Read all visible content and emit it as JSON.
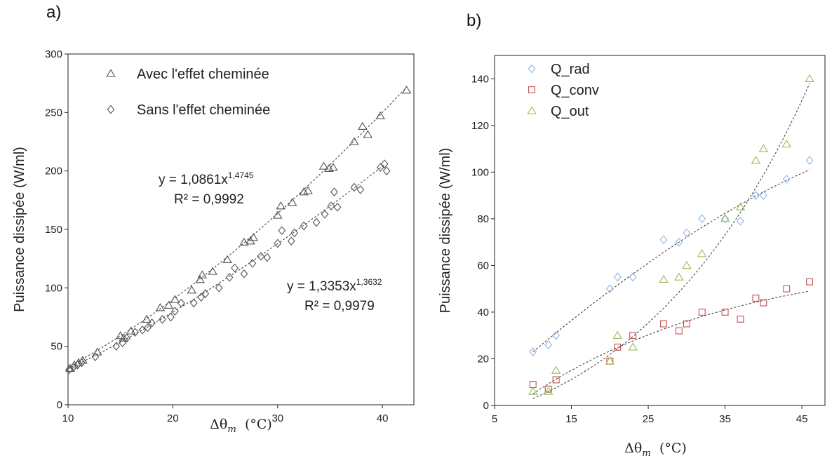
{
  "panel_a": {
    "label": "a)"
  },
  "panel_b": {
    "label": "b)"
  },
  "chart_data": [
    {
      "type": "scatter",
      "panel": "a)",
      "xlabel": "Δθm (°C)",
      "ylabel": "Puissance dissipée (W/ml)",
      "xlim": [
        10,
        43
      ],
      "ylim": [
        0,
        300
      ],
      "xticks": [
        10,
        20,
        30,
        40
      ],
      "yticks": [
        0,
        50,
        100,
        150,
        200,
        250,
        300
      ],
      "grid": false,
      "legend_position": "top-left",
      "series": [
        {
          "name": "Avec l'effet cheminée",
          "marker": "triangle",
          "color": "#555555",
          "x": [
            10.2,
            10.6,
            11.0,
            11.4,
            12.8,
            15.0,
            15.3,
            16.0,
            17.5,
            18.8,
            19.6,
            20.2,
            21.8,
            22.6,
            22.8,
            23.8,
            25.2,
            26.8,
            27.4,
            27.7,
            30.0,
            30.3,
            31.4,
            32.5,
            32.9,
            34.4,
            34.9,
            35.3,
            37.3,
            38.1,
            38.6,
            39.8,
            42.3
          ],
          "y": [
            31,
            34,
            36,
            38,
            45,
            59,
            57,
            63,
            73,
            83,
            85,
            90,
            98,
            107,
            111,
            114,
            124,
            139,
            140,
            143,
            162,
            170,
            173,
            182,
            183,
            204,
            202,
            203,
            225,
            238,
            231,
            247,
            269
          ]
        },
        {
          "name": "Sans l'effet cheminée",
          "marker": "diamond",
          "color": "#555555",
          "x": [
            10.1,
            10.5,
            10.9,
            11.3,
            12.6,
            14.6,
            15.2,
            15.6,
            16.4,
            17.1,
            17.6,
            18.0,
            19.0,
            19.8,
            20.2,
            20.8,
            22.0,
            22.7,
            23.1,
            24.4,
            25.4,
            25.9,
            26.8,
            27.6,
            28.4,
            29.0,
            30.0,
            30.4,
            31.3,
            31.6,
            32.5,
            33.7,
            34.5,
            35.1,
            35.4,
            35.7,
            37.3,
            37.9,
            39.8,
            40.2,
            40.4
          ],
          "y": [
            30,
            32,
            34,
            36,
            41,
            50,
            53,
            57,
            62,
            64,
            66,
            70,
            73,
            75,
            80,
            87,
            87,
            92,
            95,
            100,
            109,
            117,
            112,
            121,
            127,
            126,
            138,
            149,
            140,
            147,
            153,
            156,
            163,
            170,
            182,
            169,
            186,
            184,
            203,
            206,
            200
          ]
        }
      ],
      "annotations": [
        {
          "text": "y = 1,0861x",
          "superscript": "1,4745",
          "r2": "R² = 0,9992"
        },
        {
          "text": "y = 1,3353x",
          "superscript": "1,3632",
          "r2": "R² = 0,9979"
        }
      ],
      "trendlines": [
        {
          "series": "Avec l'effet cheminée",
          "fit": "power",
          "a": 1.0861,
          "b": 1.4745
        },
        {
          "series": "Sans l'effet cheminée",
          "fit": "power",
          "a": 1.3353,
          "b": 1.3632
        }
      ]
    },
    {
      "type": "scatter",
      "panel": "b)",
      "xlabel": "Δθm (°C)",
      "ylabel": "Puissance dissipée (W/ml)",
      "xlim": [
        5,
        48
      ],
      "ylim": [
        0,
        150
      ],
      "xticks": [
        5,
        15,
        25,
        35,
        45
      ],
      "yticks": [
        0,
        20,
        40,
        60,
        80,
        100,
        120,
        140
      ],
      "grid": false,
      "legend_position": "top-left",
      "series": [
        {
          "name": "Q_rad",
          "marker": "diamond",
          "color": "#8fb4e3",
          "x": [
            10,
            12,
            13,
            20,
            21,
            23,
            27,
            29,
            30,
            32,
            35,
            37,
            39,
            40,
            43,
            46
          ],
          "y": [
            23,
            26,
            30,
            50,
            55,
            55,
            71,
            70,
            74,
            80,
            80,
            79,
            90,
            90,
            97,
            105
          ]
        },
        {
          "name": "Q_conv",
          "marker": "square",
          "color": "#c0504d",
          "x": [
            10,
            12,
            13,
            20,
            21,
            23,
            27,
            29,
            30,
            32,
            35,
            37,
            39,
            40,
            43,
            46
          ],
          "y": [
            9,
            7,
            11,
            19,
            25,
            30,
            35,
            32,
            35,
            40,
            40,
            37,
            46,
            44,
            50,
            53
          ]
        },
        {
          "name": "Q_out",
          "marker": "triangle",
          "color": "#9bbb59",
          "x": [
            10,
            12,
            13,
            20,
            21,
            23,
            27,
            29,
            30,
            32,
            35,
            37,
            39,
            40,
            43,
            46
          ],
          "y": [
            6,
            6,
            15,
            19,
            30,
            25,
            54,
            55,
            60,
            65,
            80,
            85,
            105,
            110,
            112,
            140
          ]
        }
      ],
      "trendlines": [
        {
          "series": "Q_rad",
          "from": [
            10,
            23
          ],
          "to": [
            46,
            101
          ]
        },
        {
          "series": "Q_conv",
          "from": [
            10,
            5
          ],
          "to": [
            46,
            49
          ]
        },
        {
          "series": "Q_out",
          "from": [
            10,
            3
          ],
          "to": [
            46,
            138
          ]
        }
      ]
    }
  ]
}
